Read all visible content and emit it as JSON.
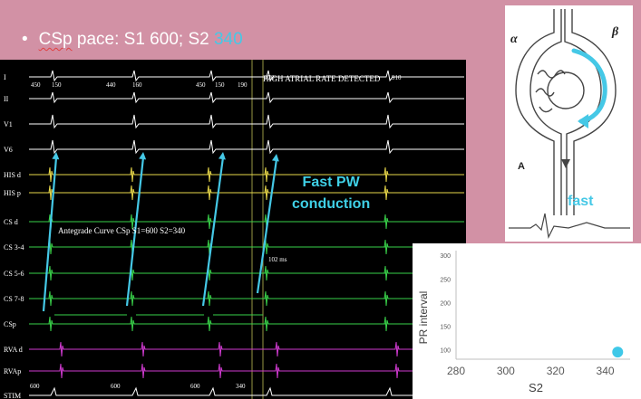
{
  "slide": {
    "bullet": "•",
    "title_prefix": "CSp",
    "title_middle": " pace: S1 600; S2 ",
    "title_s2_value": "340"
  },
  "ecg": {
    "leads": [
      "I",
      "II",
      "V1",
      "V6",
      "HIS d",
      "HIS p",
      "CS d",
      "CS 3-4",
      "CS 5-6",
      "CS 7-8",
      "CSp",
      "RVA d",
      "RVAp",
      "STIM"
    ],
    "banner": "HIGH ATRIAL RATE DETECTED",
    "intervals": [
      "450",
      "150",
      "440",
      "160",
      "450",
      "150",
      "190",
      "220",
      "910"
    ],
    "stim_labels": [
      "600",
      "600",
      "600",
      "340"
    ],
    "curve_label": "Antegrade Curve CSp S1=600 S2=340",
    "ms_label": "102 ms",
    "annotation_line1": "Fast PW",
    "annotation_line2": "conduction",
    "colors": {
      "background": "#000000",
      "surface_leads": "#ffffff",
      "his": "#e8d84a",
      "cs": "#39d24a",
      "rva": "#d03ad0",
      "arrow": "#45c8e6",
      "marker": "#d8d860"
    }
  },
  "diagram": {
    "alpha": "α",
    "beta": "β",
    "label_a": "A",
    "fast": "fast"
  },
  "chart_data": {
    "type": "scatter",
    "xlabel": "S2",
    "ylabel": "PR interval",
    "xlim": [
      280,
      350
    ],
    "ylim": [
      80,
      310
    ],
    "x_ticks": [
      280,
      300,
      320,
      340
    ],
    "y_ticks": [
      100,
      150,
      200,
      250,
      300
    ],
    "series": [
      {
        "x": [
          345
        ],
        "y": [
          95
        ],
        "color": "#3fc8e8"
      }
    ],
    "grid": false
  }
}
